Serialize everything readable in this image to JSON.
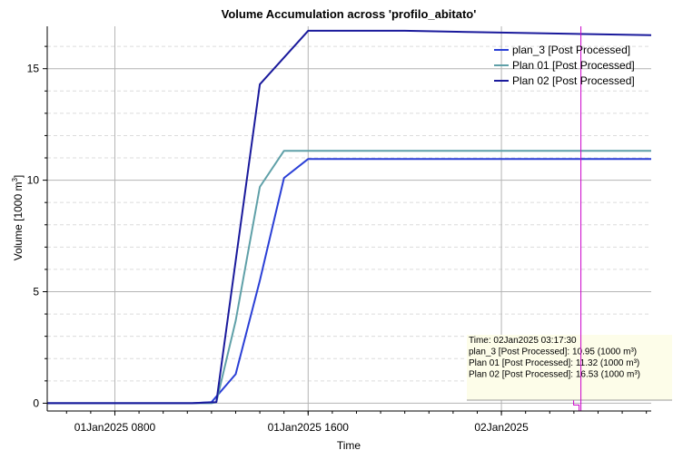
{
  "chart_data": {
    "type": "line",
    "title": "Volume Accumulation across 'profilo_abitato'",
    "xlabel": "Time",
    "ylabel_main": "Volume [1000 m",
    "ylabel_sup": "3",
    "ylabel_tail": "]",
    "x_unit": "hours since 01Jan2025 0000",
    "xlim": [
      5.2,
      30.2
    ],
    "ylim": [
      -0.35,
      16.9
    ],
    "xticks": [
      {
        "x": 8,
        "label": "01Jan2025 0800"
      },
      {
        "x": 16,
        "label": "01Jan2025 1600"
      },
      {
        "x": 24,
        "label": "02Jan2025"
      }
    ],
    "yticks": [
      0,
      5,
      10,
      15
    ],
    "grid": true,
    "legend_position": "top-right",
    "series": [
      {
        "name": "plan_3 [Post Processed]",
        "color": "#2a3fd6",
        "points": [
          [
            5.2,
            0
          ],
          [
            11.2,
            0
          ],
          [
            12.0,
            0.05
          ],
          [
            13.0,
            1.3
          ],
          [
            14.0,
            5.5
          ],
          [
            15.0,
            10.1
          ],
          [
            16.0,
            10.95
          ],
          [
            30.2,
            10.95
          ]
        ]
      },
      {
        "name": "Plan 01 [Post Processed]",
        "color": "#5fa0a8",
        "points": [
          [
            5.2,
            0
          ],
          [
            12.0,
            0
          ],
          [
            12.2,
            0.05
          ],
          [
            13.0,
            3.7
          ],
          [
            14.0,
            9.7
          ],
          [
            15.0,
            11.32
          ],
          [
            16.0,
            11.32
          ],
          [
            30.2,
            11.32
          ]
        ]
      },
      {
        "name": "Plan 02 [Post Processed]",
        "color": "#1a1a9c",
        "points": [
          [
            5.2,
            0
          ],
          [
            11.2,
            0
          ],
          [
            12.2,
            0.05
          ],
          [
            14.0,
            14.3
          ],
          [
            16.0,
            16.7
          ],
          [
            20.0,
            16.7
          ],
          [
            25.0,
            16.6
          ],
          [
            30.2,
            16.5
          ]
        ]
      }
    ],
    "cursor": {
      "x": 27.29,
      "color": "#cc00cc"
    },
    "tooltip": {
      "lines": [
        "Time:  02Jan2025  03:17:30",
        "plan_3 [Post Processed]:  10.95 (1000 m³)",
        "Plan 01 [Post Processed]:  11.32 (1000 m³)",
        "Plan 02 [Post Processed]:  16.53 (1000 m³)"
      ]
    }
  }
}
